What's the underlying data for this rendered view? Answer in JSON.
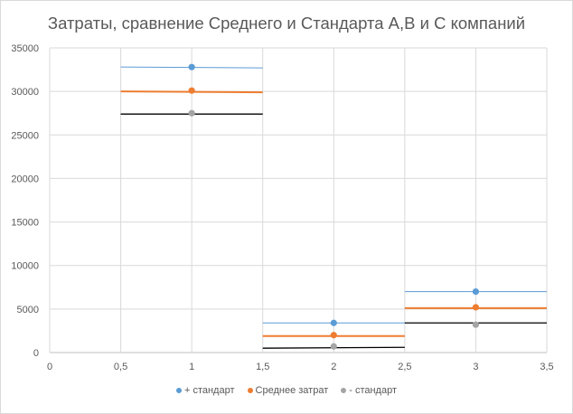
{
  "chart_data": {
    "type": "scatter",
    "title": "Затраты, сравнение Среднего и Стандарта А,В и С компаний",
    "xlim": [
      0,
      3.5
    ],
    "ylim": [
      0,
      35000
    ],
    "x_ticks": [
      "0",
      "0,5",
      "1",
      "1,5",
      "2",
      "2,5",
      "3",
      "3,5"
    ],
    "y_ticks": [
      "0",
      "5000",
      "10000",
      "15000",
      "20000",
      "25000",
      "30000",
      "35000"
    ],
    "grid": true,
    "legend_position": "bottom",
    "series": [
      {
        "name": "+ стандарт",
        "color": "#5b9bd5",
        "points": [
          {
            "x": 1,
            "y": 32800
          },
          {
            "x": 2,
            "y": 3400
          },
          {
            "x": 3,
            "y": 7000
          }
        ],
        "segments": [
          {
            "x1": 0.5,
            "y1": 32800,
            "x2": 1.5,
            "y2": 32700
          },
          {
            "x1": 1.5,
            "y1": 3400,
            "x2": 2.5,
            "y2": 3400
          },
          {
            "x1": 2.5,
            "y1": 7000,
            "x2": 3.5,
            "y2": 7000
          }
        ]
      },
      {
        "name": "Среднее затрат",
        "color": "#ed7d31",
        "points": [
          {
            "x": 1,
            "y": 30100
          },
          {
            "x": 2,
            "y": 2000
          },
          {
            "x": 3,
            "y": 5200
          }
        ],
        "segments": [
          {
            "x1": 0.5,
            "y1": 30000,
            "x2": 1.5,
            "y2": 29900
          },
          {
            "x1": 1.5,
            "y1": 1900,
            "x2": 2.5,
            "y2": 1900
          },
          {
            "x1": 2.5,
            "y1": 5100,
            "x2": 3.5,
            "y2": 5100
          }
        ]
      },
      {
        "name": "- стандарт",
        "color": "#a5a5a5",
        "line_color": "#000000",
        "points": [
          {
            "x": 1,
            "y": 27500
          },
          {
            "x": 2,
            "y": 700
          },
          {
            "x": 3,
            "y": 3200
          }
        ],
        "segments": [
          {
            "x1": 0.5,
            "y1": 27400,
            "x2": 1.5,
            "y2": 27400
          },
          {
            "x1": 1.5,
            "y1": 500,
            "x2": 2.5,
            "y2": 600
          },
          {
            "x1": 2.5,
            "y1": 3400,
            "x2": 3.5,
            "y2": 3400
          }
        ]
      }
    ]
  }
}
